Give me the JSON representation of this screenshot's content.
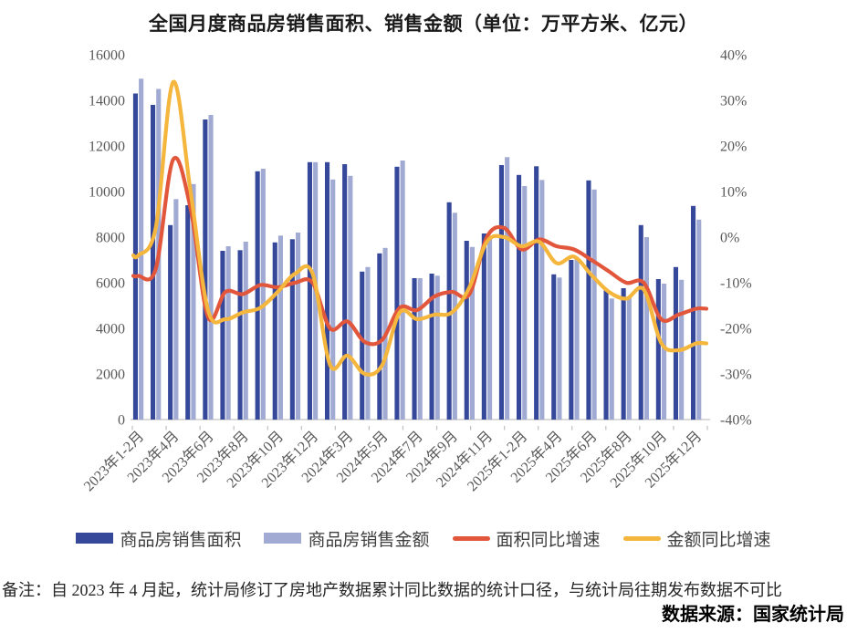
{
  "title": "全国月度商品房销售面积、销售金额（单位：万平方米、亿元）",
  "legend": {
    "items": [
      {
        "label": "商品房销售面积",
        "color": "#36489A",
        "type": "bar"
      },
      {
        "label": "商品房销售金额",
        "color": "#A1AAD3",
        "type": "bar"
      },
      {
        "label": "面积同比增速",
        "color": "#E2573C",
        "type": "line"
      },
      {
        "label": "金额同比增速",
        "color": "#F5B63D",
        "type": "line"
      }
    ]
  },
  "notes": {
    "remark": "备注：自 2023 年 4 月起，统计局修订了房地产数据累计同比数据的统计口径，与统计局往期发布数据不可比",
    "source": "数据来源：国家统计局"
  },
  "chart_data": {
    "type": "bar+line combo",
    "title": "全国月度商品房销售面积、销售金额（单位：万平方米、亿元）",
    "grid": false,
    "left_axis": {
      "min": 0,
      "max": 16000,
      "ticks": [
        0,
        2000,
        4000,
        6000,
        8000,
        10000,
        12000,
        14000,
        16000
      ],
      "unit": "万平方米/亿元"
    },
    "right_axis": {
      "min": -40,
      "max": 40,
      "ticks": [
        40,
        30,
        20,
        10,
        0,
        -10,
        -20,
        -30,
        -40
      ],
      "unit": "%"
    },
    "categories": [
      "2023年1-2月",
      "2023年3月",
      "2023年4月",
      "2023年5月",
      "2023年6月",
      "2023年7月",
      "2023年8月",
      "2023年9月",
      "2023年10月",
      "2023年11月",
      "2023年12月",
      "2024年1-2月",
      "2024年3月",
      "2024年4月",
      "2024年5月",
      "2024年6月",
      "2024年7月",
      "2024年8月",
      "2024年9月",
      "2024年10月",
      "2024年11月",
      "2024年12月",
      "2025年1-2月",
      "2025年3月",
      "2025年4月",
      "2025年5月",
      "2025年6月",
      "2025年7月",
      "2025年8月",
      "2025年9月",
      "2025年10月",
      "2025年11月",
      "2025年12月"
    ],
    "x_tick_labels": [
      "2023年1-2月",
      "2023年4月",
      "2023年6月",
      "2023年8月",
      "2023年10月",
      "2023年12月",
      "2024年3月",
      "2024年5月",
      "2024年7月",
      "2024年9月",
      "2024年11月",
      "2025年1-2月",
      "2025年4月",
      "2025年6月",
      "2025年8月",
      "2025年10月",
      "2025年12月"
    ],
    "bar_series": [
      {
        "name": "商品房销售面积",
        "color": "#36489A",
        "axis": "left",
        "values": [
          14300,
          13800,
          8530,
          9400,
          13160,
          7400,
          7430,
          10890,
          7770,
          7910,
          11290,
          11290,
          11200,
          6490,
          7290,
          11090,
          6200,
          6400,
          9530,
          7840,
          8160,
          11160,
          10730,
          11110,
          6370,
          7000,
          10490,
          5710,
          5760,
          8530,
          6160,
          6690,
          9370
        ]
      },
      {
        "name": "商品房销售金额",
        "color": "#A1AAD3",
        "axis": "left",
        "values": [
          14950,
          14500,
          9670,
          10330,
          13360,
          7600,
          7800,
          11000,
          8070,
          8200,
          11290,
          10530,
          10690,
          6690,
          7530,
          11360,
          6200,
          6310,
          9070,
          7570,
          7960,
          11510,
          10240,
          10510,
          6230,
          7030,
          10090,
          5310,
          5360,
          8000,
          5960,
          6130,
          8770
        ]
      }
    ],
    "line_series": [
      {
        "name": "面积同比增速",
        "color": "#E2573C",
        "axis": "right",
        "values": [
          -8.5,
          -7,
          17,
          6.3,
          -17.5,
          -12,
          -12.5,
          -10.5,
          -11,
          -10,
          -10,
          -20,
          -18.5,
          -23,
          -22.5,
          -15.5,
          -16,
          -13,
          -12,
          -12.5,
          0,
          2,
          -2.7,
          -0.5,
          -2,
          -2.7,
          -5,
          -7.5,
          -10,
          -10,
          -18,
          -17,
          -15.7
        ]
      },
      {
        "name": "金额同比增速",
        "color": "#F5B63D",
        "axis": "right",
        "values": [
          -4,
          2,
          34,
          10,
          -16,
          -18,
          -16.5,
          -15.5,
          -12,
          -8,
          -8,
          -28,
          -26,
          -30,
          -28,
          -16.5,
          -18,
          -17,
          -16.5,
          -11,
          -1,
          0,
          -2,
          -1,
          -5.7,
          -4.3,
          -8.3,
          -12,
          -13.5,
          -11.5,
          -23.2,
          -24.8,
          -23.3
        ]
      }
    ]
  }
}
